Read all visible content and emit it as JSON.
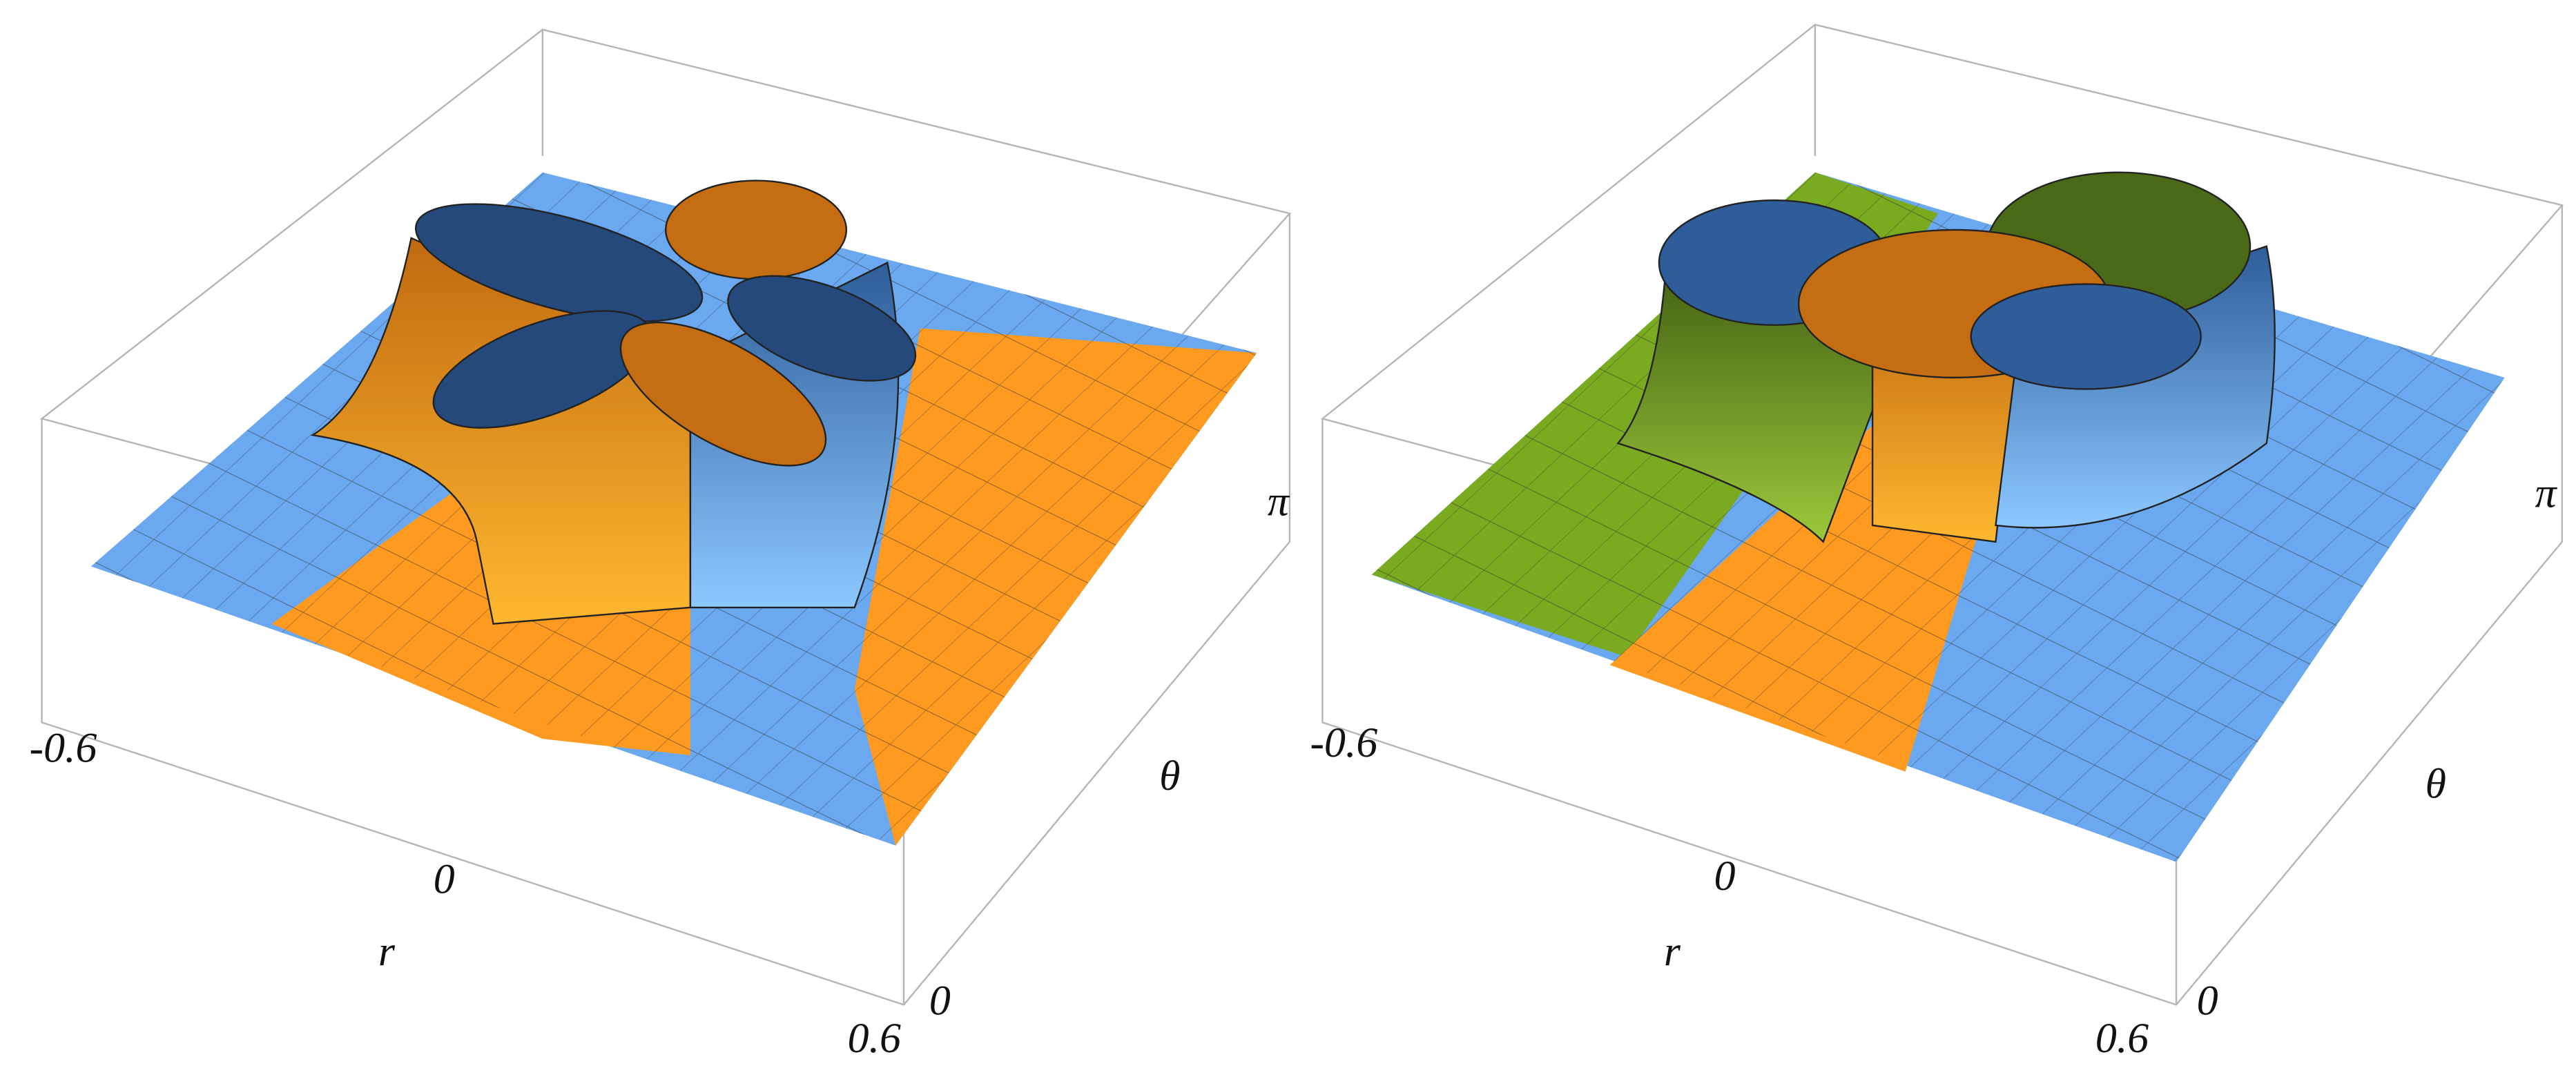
{
  "panels": [
    {
      "r_axis": {
        "label": "r",
        "ticks": [
          "-0.6",
          "0",
          "0.6"
        ]
      },
      "theta_axis": {
        "label": "θ",
        "ticks": [
          "0",
          "π"
        ]
      }
    },
    {
      "r_axis": {
        "label": "r",
        "ticks": [
          "-0.6",
          "0",
          "0.6"
        ]
      },
      "theta_axis": {
        "label": "θ",
        "ticks": [
          "0",
          "π"
        ]
      }
    }
  ]
}
